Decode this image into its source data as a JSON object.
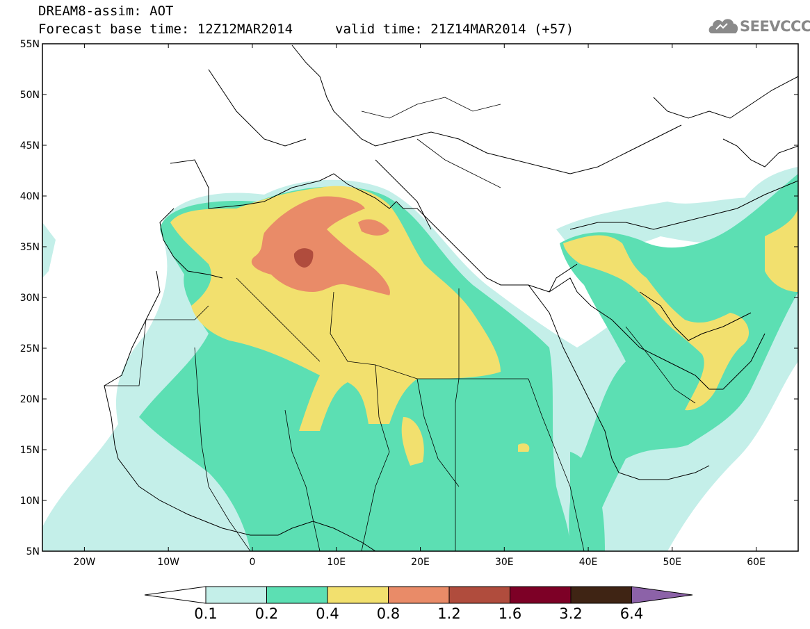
{
  "header": {
    "title": "DREAM8-assim: AOT",
    "base_time": "Forecast base time: 12Z12MAR2014",
    "valid_time": "valid time: 21Z14MAR2014 (+57)",
    "logo_text": "SEEVCCC"
  },
  "map": {
    "lon_range": [
      -25,
      65
    ],
    "lat_range": [
      5,
      55
    ],
    "lat_ticks": [
      {
        "value": 55,
        "label": "55N"
      },
      {
        "value": 50,
        "label": "50N"
      },
      {
        "value": 45,
        "label": "45N"
      },
      {
        "value": 40,
        "label": "40N"
      },
      {
        "value": 35,
        "label": "35N"
      },
      {
        "value": 30,
        "label": "30N"
      },
      {
        "value": 25,
        "label": "25N"
      },
      {
        "value": 20,
        "label": "20N"
      },
      {
        "value": 15,
        "label": "15N"
      },
      {
        "value": 10,
        "label": "10N"
      },
      {
        "value": 5,
        "label": "5N"
      }
    ],
    "lon_ticks": [
      {
        "value": -20,
        "label": "20W"
      },
      {
        "value": -10,
        "label": "10W"
      },
      {
        "value": 0,
        "label": "0"
      },
      {
        "value": 10,
        "label": "10E"
      },
      {
        "value": 20,
        "label": "20E"
      },
      {
        "value": 30,
        "label": "30E"
      },
      {
        "value": 40,
        "label": "40E"
      },
      {
        "value": 50,
        "label": "50E"
      },
      {
        "value": 60,
        "label": "60E"
      }
    ]
  },
  "colorbar": {
    "labels": [
      "0.1",
      "0.2",
      "0.4",
      "0.8",
      "1.2",
      "1.6",
      "3.2",
      "6.4"
    ],
    "colors": {
      "below": "#ffffff",
      "c1": "#c4efe9",
      "c2": "#5cdfb3",
      "c3": "#f2e06e",
      "c4": "#e98b68",
      "c5": "#b04c3d",
      "c6": "#7d0026",
      "c7": "#3f2414",
      "above": "#8c62a8"
    }
  }
}
